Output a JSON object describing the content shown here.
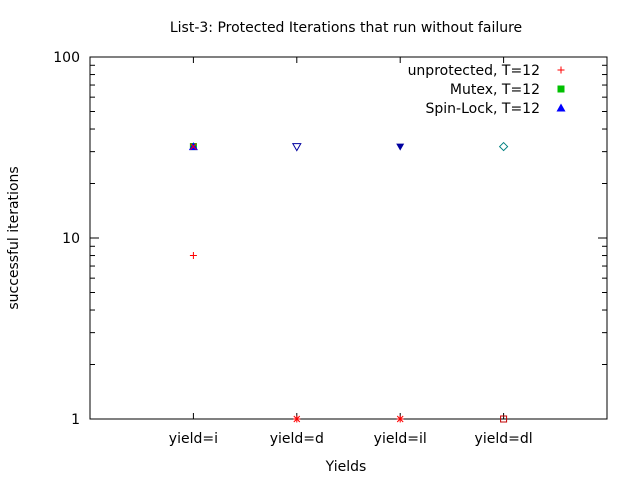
{
  "chart_data": {
    "type": "scatter",
    "title": "List-3: Protected Iterations that run without failure",
    "xlabel": "Yields",
    "ylabel": "successful iterations",
    "yscale": "log",
    "ylim": [
      1,
      100
    ],
    "xlim": [
      0,
      5
    ],
    "grid": false,
    "legend_position": "top-right",
    "categories": [
      "yield=i",
      "yield=d",
      "yield=il",
      "yield=dl"
    ],
    "yticks": [
      {
        "value": 1,
        "label": "1"
      },
      {
        "value": 10,
        "label": "10"
      },
      {
        "value": 100,
        "label": "100"
      }
    ],
    "series": [
      {
        "name": "unprotected, T=12",
        "color": "#ff0000",
        "marker": "plus",
        "points": [
          {
            "x": 1,
            "y": 8
          },
          {
            "x": 2,
            "y": 1
          },
          {
            "x": 3,
            "y": 1
          }
        ]
      },
      {
        "name": "Mutex, T=12",
        "color": "#00c000",
        "marker": "filled-square",
        "points": [
          {
            "x": 1,
            "y": 32
          }
        ]
      },
      {
        "name": "Spin-Lock, T=12",
        "color": "#0000ff",
        "marker": "filled-triangle",
        "points": [
          {
            "x": 1,
            "y": 32
          }
        ]
      },
      {
        "name": "",
        "color": "#ff0000",
        "marker": "cross",
        "points": [
          {
            "x": 1,
            "y": 32
          },
          {
            "x": 2,
            "y": 1
          },
          {
            "x": 3,
            "y": 1
          }
        ]
      },
      {
        "name": "",
        "color": "#c00000",
        "marker": "square",
        "points": [
          {
            "x": 4,
            "y": 1
          }
        ]
      },
      {
        "name": "",
        "color": "#0000a0",
        "marker": "triangle-down",
        "points": [
          {
            "x": 2,
            "y": 32
          }
        ]
      },
      {
        "name": "",
        "color": "#0000a0",
        "marker": "filled-triangle-down",
        "points": [
          {
            "x": 3,
            "y": 32
          }
        ]
      },
      {
        "name": "",
        "color": "#008080",
        "marker": "diamond",
        "points": [
          {
            "x": 4,
            "y": 32
          }
        ]
      }
    ]
  }
}
